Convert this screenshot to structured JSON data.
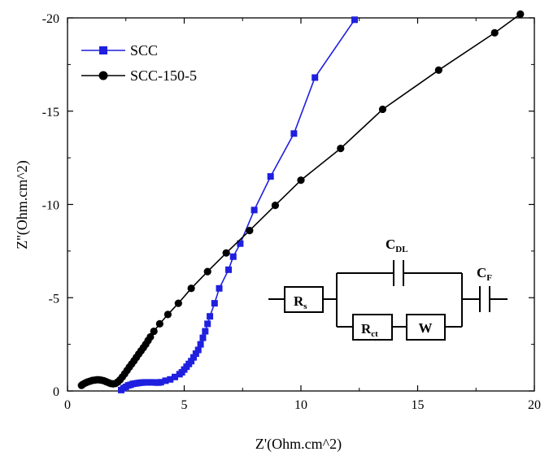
{
  "chart_data": {
    "type": "line",
    "xlabel": "Z'(Ohm.cm^2)",
    "ylabel": "Z''(Ohm.cm^2)",
    "xlim": [
      0,
      20
    ],
    "ylim": [
      0,
      -20
    ],
    "x_ticks": [
      0,
      5,
      10,
      15,
      20
    ],
    "y_ticks": [
      0,
      -5,
      -10,
      -15,
      -20
    ],
    "grid": false,
    "legend_position": "top-left",
    "series": [
      {
        "name": "SCC",
        "color": "#1f1fe0",
        "marker": "square",
        "x": [
          2.3,
          2.4,
          2.5,
          2.6,
          2.7,
          2.8,
          2.9,
          3.0,
          3.1,
          3.2,
          3.3,
          3.4,
          3.5,
          3.6,
          3.7,
          3.8,
          3.9,
          4.0,
          4.2,
          4.4,
          4.6,
          4.8,
          4.9,
          5.0,
          5.1,
          5.2,
          5.3,
          5.4,
          5.5,
          5.6,
          5.7,
          5.8,
          5.9,
          6.0,
          6.1,
          6.3,
          6.5,
          6.9,
          7.1,
          7.4,
          8.0,
          8.7,
          9.7,
          10.6,
          12.3
        ],
        "y": [
          -0.05,
          -0.15,
          -0.22,
          -0.3,
          -0.33,
          -0.38,
          -0.4,
          -0.42,
          -0.44,
          -0.45,
          -0.46,
          -0.46,
          -0.46,
          -0.46,
          -0.46,
          -0.45,
          -0.45,
          -0.47,
          -0.55,
          -0.62,
          -0.75,
          -0.9,
          -1.0,
          -1.15,
          -1.3,
          -1.45,
          -1.6,
          -1.8,
          -2.0,
          -2.2,
          -2.5,
          -2.85,
          -3.2,
          -3.6,
          -4.0,
          -4.7,
          -5.5,
          -6.5,
          -7.2,
          -7.9,
          -9.7,
          -11.5,
          -13.8,
          -16.8,
          -19.9
        ]
      },
      {
        "name": "SCC-150-5",
        "color": "#000000",
        "marker": "circle",
        "x": [
          0.6,
          0.65,
          0.75,
          0.85,
          0.95,
          1.05,
          1.15,
          1.25,
          1.35,
          1.45,
          1.55,
          1.65,
          1.75,
          1.85,
          1.95,
          2.05,
          2.15,
          2.25,
          2.35,
          2.45,
          2.55,
          2.65,
          2.75,
          2.85,
          2.95,
          3.05,
          3.15,
          3.25,
          3.35,
          3.45,
          3.55,
          3.7,
          3.95,
          4.3,
          4.75,
          5.3,
          6.0,
          6.8,
          7.8,
          8.9,
          10.0,
          11.7,
          13.5,
          15.9,
          18.3,
          19.4
        ],
        "y": [
          -0.3,
          -0.35,
          -0.42,
          -0.48,
          -0.52,
          -0.56,
          -0.58,
          -0.6,
          -0.6,
          -0.58,
          -0.55,
          -0.5,
          -0.45,
          -0.4,
          -0.38,
          -0.4,
          -0.48,
          -0.6,
          -0.75,
          -0.92,
          -1.1,
          -1.28,
          -1.45,
          -1.62,
          -1.8,
          -1.98,
          -2.15,
          -2.32,
          -2.5,
          -2.7,
          -2.9,
          -3.2,
          -3.6,
          -4.1,
          -4.7,
          -5.5,
          -6.4,
          -7.4,
          -8.6,
          -9.95,
          -11.3,
          -13.0,
          -15.1,
          -17.2,
          -19.2,
          -20.2
        ]
      }
    ]
  },
  "circuit": {
    "rs": "R",
    "rs_sub": "s",
    "cdl": "C",
    "cdl_sub": "DL",
    "rct": "R",
    "rct_sub": "ct",
    "w": "W",
    "cf": "C",
    "cf_sub": "F"
  }
}
